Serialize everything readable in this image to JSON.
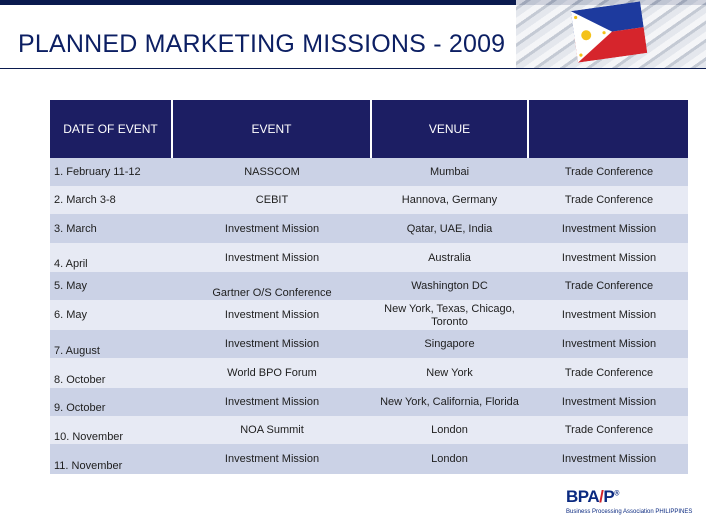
{
  "slide": {
    "title": "PLANNED MARKETING MISSIONS - 2009"
  },
  "table": {
    "headers": [
      "DATE OF EVENT",
      "EVENT",
      "VENUE",
      ""
    ],
    "rows": [
      {
        "date": "1. February 11-12",
        "event": "NASSCOM",
        "venue": "Mumbai",
        "type": "Trade Conference"
      },
      {
        "date": "2. March 3-8",
        "event": "CEBIT",
        "venue": "Hannova, Germany",
        "type": "Trade Conference"
      },
      {
        "date": "3. March",
        "event": "Investment Mission",
        "venue": "Qatar, UAE, India",
        "type": "Investment Mission"
      },
      {
        "date": "4. April",
        "event": "Investment Mission",
        "venue": "Australia",
        "type": "Investment Mission"
      },
      {
        "date": "5. May",
        "event": "Gartner O/S Conference",
        "venue": "Washington DC",
        "type": "Trade Conference"
      },
      {
        "date": "6. May",
        "event": "Investment Mission",
        "venue": "New York, Texas, Chicago, Toronto",
        "type": "Investment Mission"
      },
      {
        "date": "7. August",
        "event": "Investment Mission",
        "venue": "Singapore",
        "type": "Investment Mission"
      },
      {
        "date": "8. October",
        "event": "World BPO Forum",
        "venue": "New York",
        "type": "Trade Conference"
      },
      {
        "date": "9. October",
        "event": "Investment Mission",
        "venue": "New York, California, Florida",
        "type": "Investment Mission"
      },
      {
        "date": "10. November",
        "event": "NOA Summit",
        "venue": "London",
        "type": "Trade Conference"
      },
      {
        "date": "11. November",
        "event": "Investment Mission",
        "venue": "London",
        "type": "Investment Mission"
      }
    ]
  },
  "logo": {
    "mark_left": "BPA",
    "mark_slash": "/",
    "mark_right": "P",
    "mark_super": "®",
    "tagline": "Business Processing Association PHILIPPINES"
  },
  "colors": {
    "navy": "#0c1f63",
    "header_bg": "#1c1e63",
    "row_odd": "#cbd2e6",
    "row_even": "#e7eaf4",
    "logo_red": "#d3252b"
  },
  "icons": {
    "flag": "philippine-flag-icon"
  }
}
